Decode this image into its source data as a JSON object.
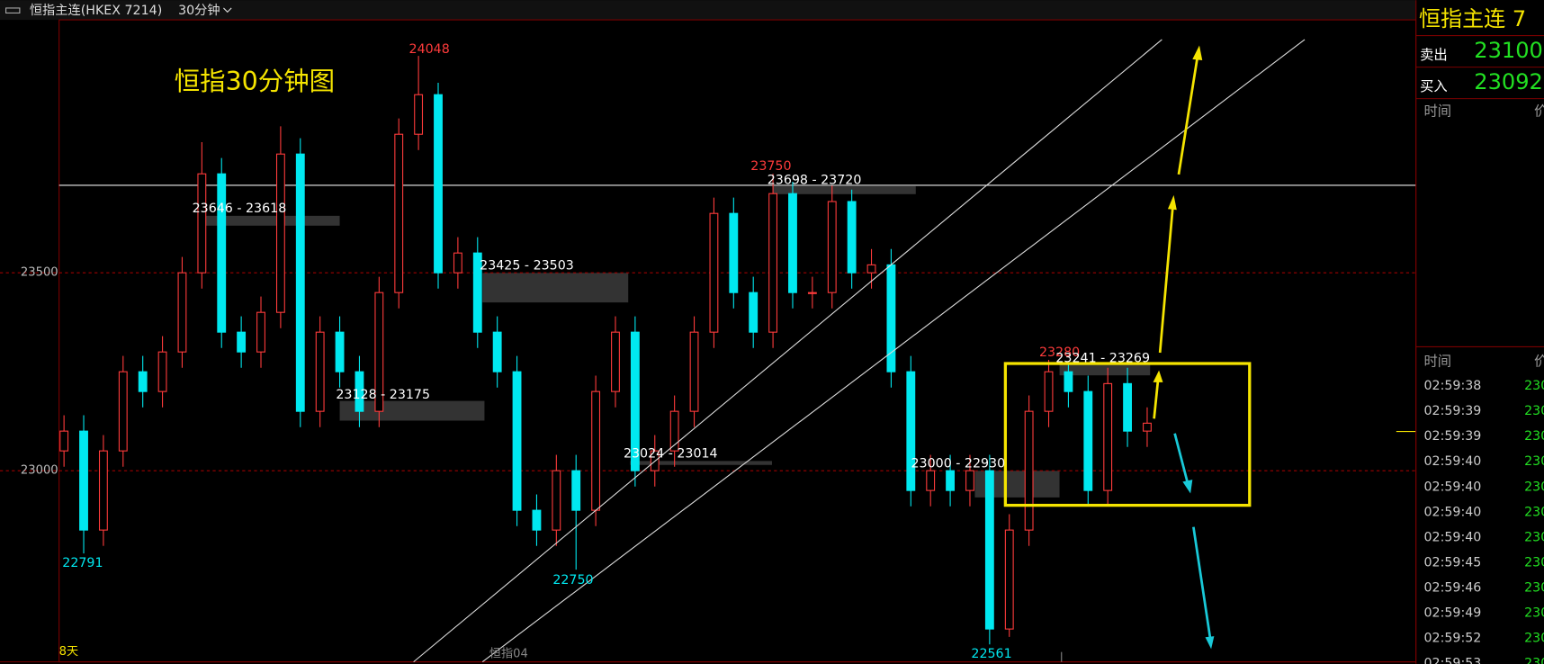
{
  "header": {
    "instrument": "恒指主连(HKEX 7214)",
    "period": "30分钟"
  },
  "chart_data": {
    "type": "candlestick",
    "title": "恒指30分钟图",
    "open": [
      23050,
      23100,
      22850,
      23050,
      23250,
      23200,
      23300,
      23500,
      23750,
      23350,
      23300,
      23400,
      23800,
      23150,
      23350,
      23250,
      23150,
      23450,
      23850,
      23950,
      23500,
      23550,
      23350,
      23250,
      22900,
      22850,
      23000,
      22900,
      23200,
      23350,
      23000,
      23050,
      23150,
      23350,
      23650,
      23450,
      23350,
      23700,
      23450,
      23450,
      23680,
      23500,
      23520,
      23250,
      22950,
      23000,
      22950,
      23000,
      22600,
      22850,
      23150,
      23250,
      23200,
      22950,
      23220,
      23100
    ],
    "high": [
      23140,
      23140,
      23090,
      23290,
      23290,
      23340,
      23540,
      23830,
      23790,
      23390,
      23440,
      23870,
      23840,
      23390,
      23390,
      23290,
      23490,
      23890,
      24048,
      23980,
      23590,
      23590,
      23390,
      23290,
      22940,
      23040,
      23040,
      23240,
      23390,
      23390,
      23090,
      23190,
      23390,
      23690,
      23690,
      23490,
      23750,
      23730,
      23490,
      23720,
      23710,
      23560,
      23560,
      23290,
      23040,
      23040,
      23040,
      23040,
      22890,
      23190,
      23280,
      23270,
      23240,
      23260,
      23260,
      23160
    ],
    "low": [
      23010,
      22791,
      22810,
      23010,
      23160,
      23160,
      23260,
      23460,
      23310,
      23260,
      23260,
      23360,
      23110,
      23110,
      23210,
      23110,
      23110,
      23410,
      23810,
      23460,
      23460,
      23310,
      23210,
      22860,
      22810,
      22810,
      22750,
      22860,
      23160,
      22960,
      22960,
      23010,
      23110,
      23310,
      23410,
      23310,
      23310,
      23410,
      23410,
      23410,
      23460,
      23460,
      23210,
      22910,
      22910,
      22910,
      22910,
      22561,
      22580,
      22810,
      23110,
      23160,
      22910,
      22910,
      23060,
      23060
    ],
    "close": [
      23100,
      22850,
      23050,
      23250,
      23200,
      23300,
      23500,
      23750,
      23350,
      23300,
      23400,
      23800,
      23150,
      23350,
      23250,
      23150,
      23450,
      23850,
      23950,
      23500,
      23550,
      23350,
      23250,
      22900,
      22850,
      23000,
      22900,
      23200,
      23350,
      23000,
      23050,
      23150,
      23350,
      23650,
      23450,
      23350,
      23700,
      23450,
      23450,
      23680,
      23500,
      23520,
      23250,
      22950,
      23000,
      22950,
      23000,
      22600,
      22850,
      23150,
      23250,
      23200,
      22950,
      23220,
      23100,
      23120
    ],
    "up_color": "#ff3b3b",
    "down_color": "#00e8f0",
    "ylim": [
      22517,
      24139
    ],
    "yticks": [
      23000,
      23500
    ],
    "grid": true,
    "horizontal_line": 23721,
    "extreme_labels": [
      24048,
      23750,
      23280,
      22791,
      22750,
      22561
    ],
    "zone_labels": [
      "23646 - 23618",
      "23425 - 23503",
      "23128 - 23175",
      "23024 - 23014",
      "23000 - 22930",
      "23698 - 23720",
      "23241 - 23269"
    ],
    "footer_labels": [
      "8天",
      "恒指04"
    ]
  },
  "side_panel": {
    "title": "恒指主连 7",
    "sell_label": "卖出",
    "sell_price": "23100",
    "buy_label": "买入",
    "buy_price": "23092",
    "time_header": "时间",
    "price_header": "价",
    "trades_header": "时间",
    "trade_times": [
      "02:59:38",
      "02:59:39",
      "02:59:39",
      "02:59:40",
      "02:59:40",
      "02:59:40",
      "02:59:40",
      "02:59:45",
      "02:59:46",
      "02:59:49",
      "02:59:52",
      "02:59:53"
    ],
    "trade_prices": [
      "230",
      "230",
      "230",
      "230",
      "230",
      "230",
      "230",
      "230",
      "230",
      "230",
      "230",
      "230"
    ]
  }
}
